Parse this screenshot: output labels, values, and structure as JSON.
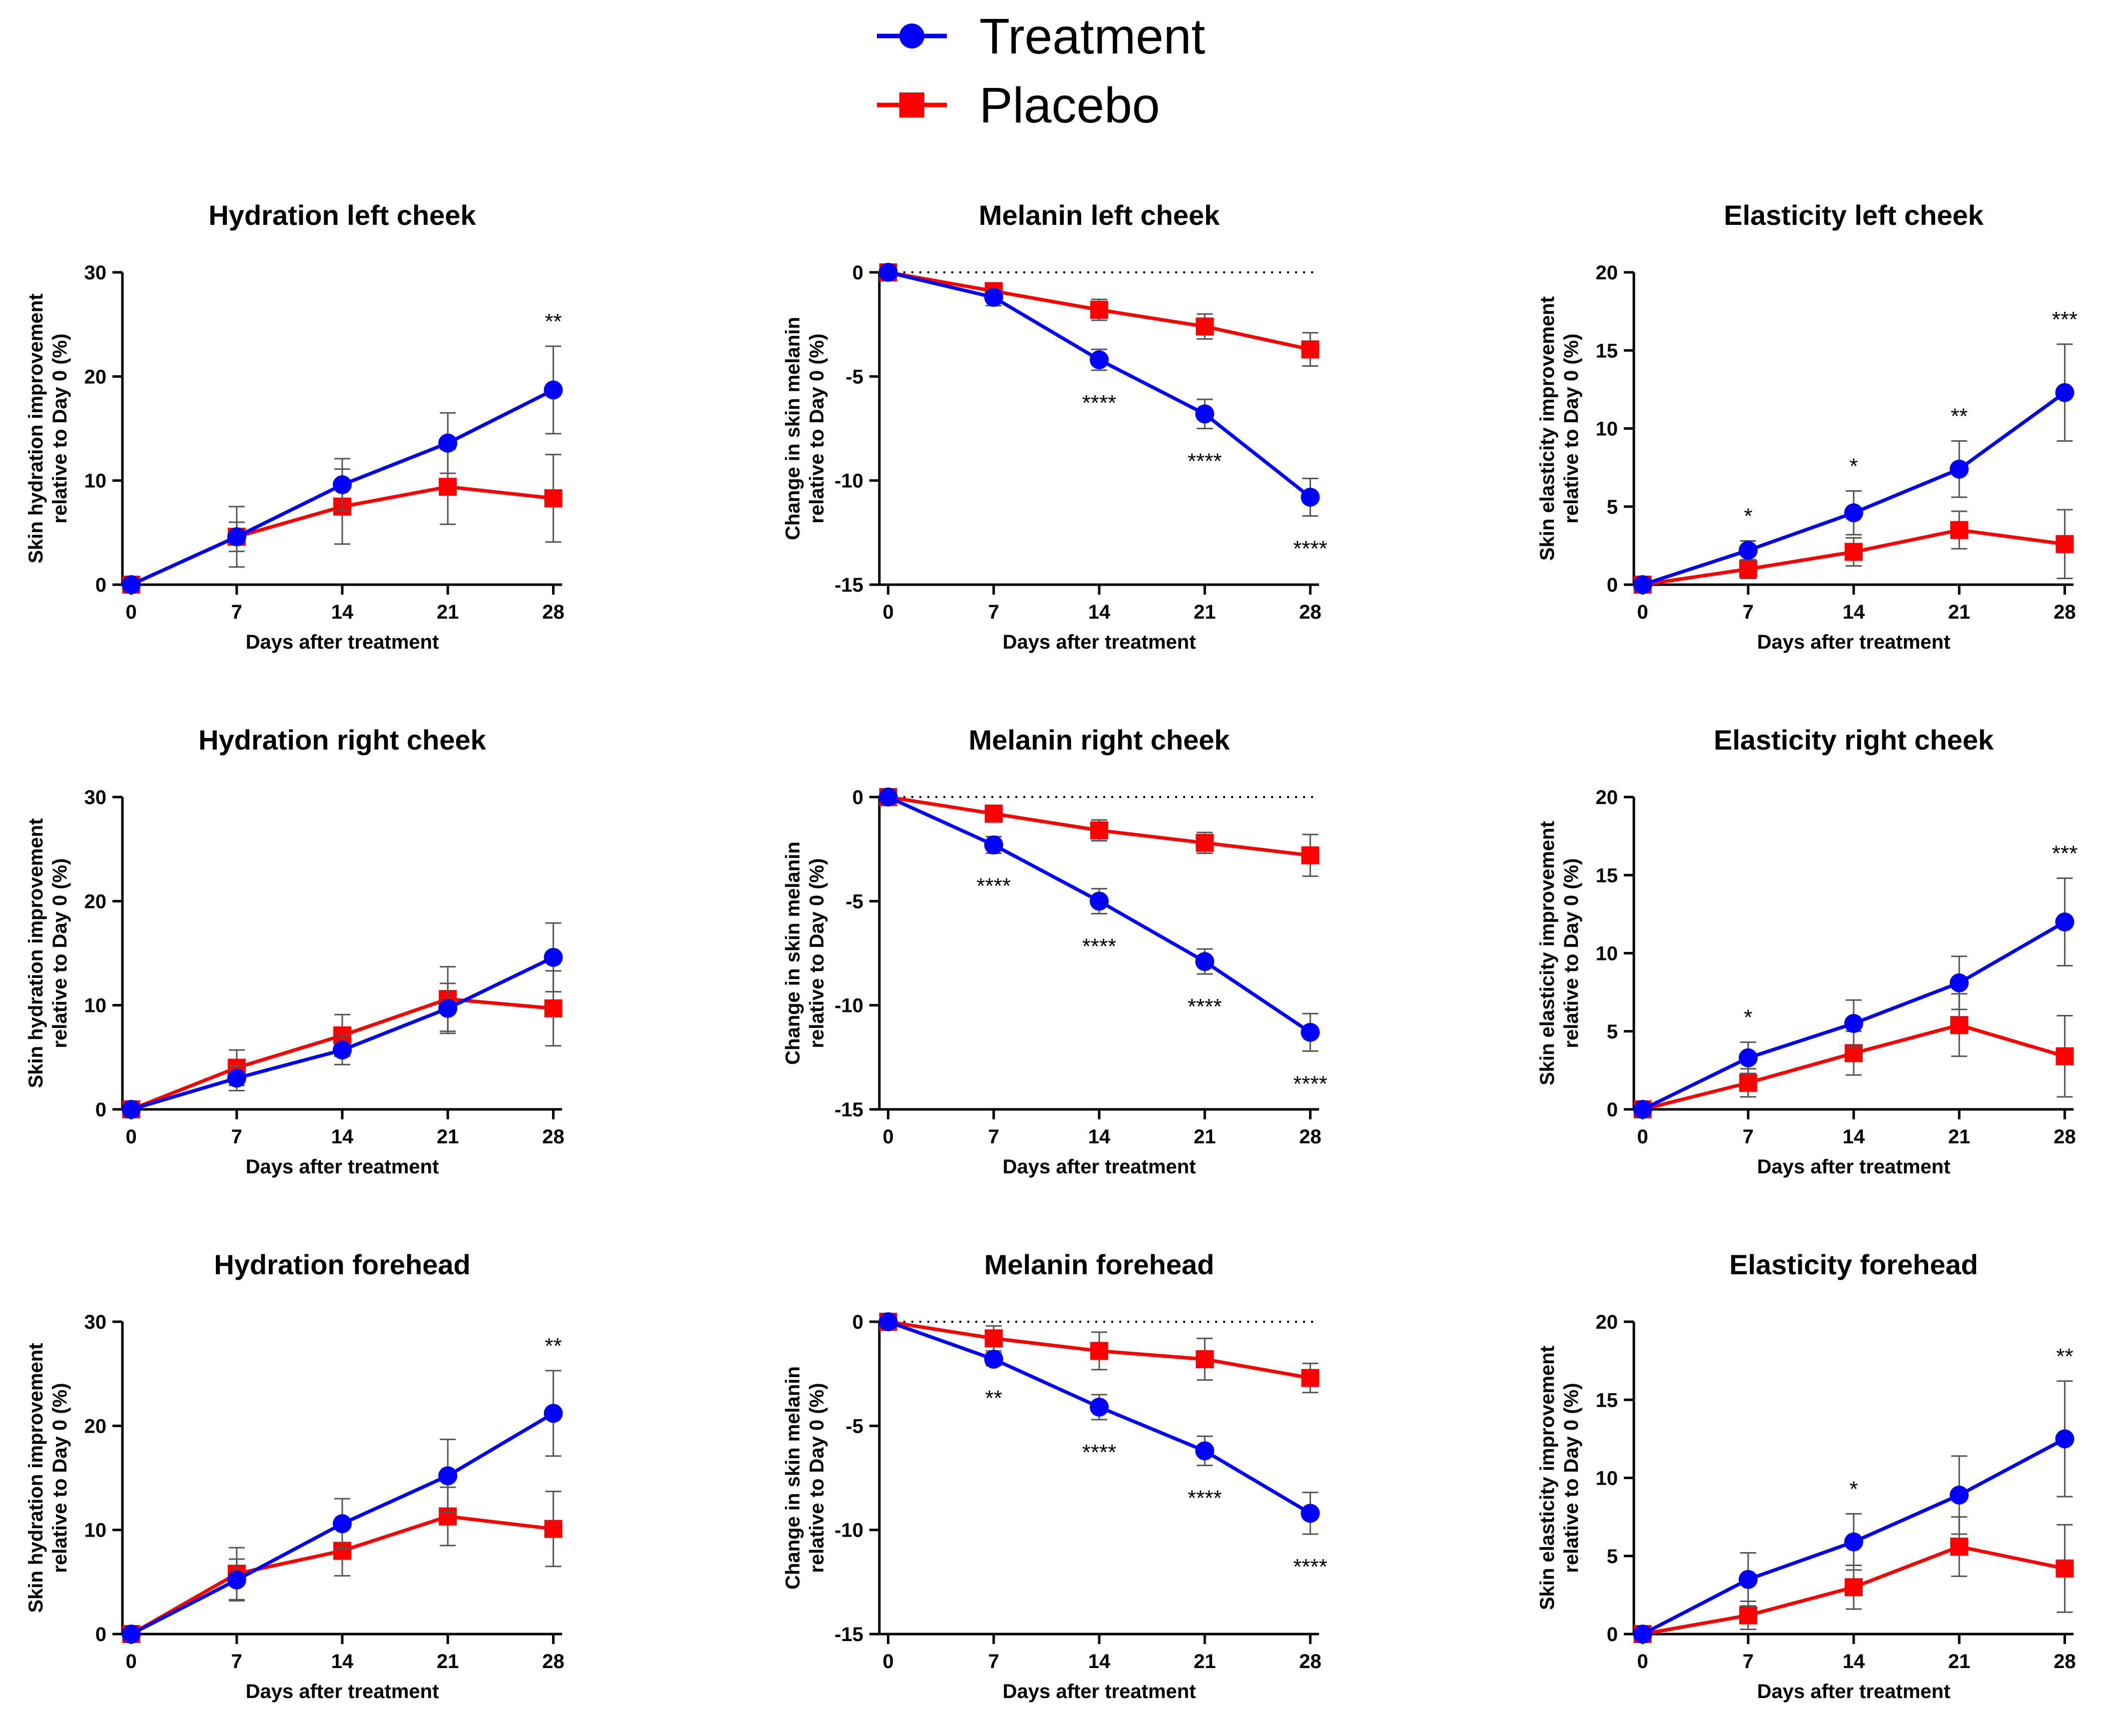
{
  "legend": {
    "items": [
      {
        "label": "Treatment",
        "color": "#0000FF",
        "marker": "circle"
      },
      {
        "label": "Placebo",
        "color": "#FF0000",
        "marker": "square"
      }
    ]
  },
  "chart_data": [
    {
      "type": "line",
      "title": "Hydration left cheek",
      "xlabel": "Days after treatment",
      "ylabel": [
        "Skin hydration improvement",
        "relative to Day 0 (%)"
      ],
      "x": [
        0,
        7,
        14,
        21,
        28
      ],
      "xticks": [
        "0",
        "7",
        "14",
        "21",
        "28"
      ],
      "ylim": [
        0,
        30
      ],
      "yticks": [
        "0",
        "10",
        "20",
        "30"
      ],
      "ytick_values": [
        0,
        10,
        20,
        30
      ],
      "zero_line": false,
      "series": [
        {
          "name": "Treatment",
          "values": [
            0,
            4.6,
            9.6,
            13.6,
            18.7
          ],
          "err": [
            0,
            1.4,
            2.5,
            2.9,
            4.2
          ]
        },
        {
          "name": "Placebo",
          "values": [
            0,
            4.6,
            7.5,
            9.4,
            8.3
          ],
          "err": [
            0,
            2.9,
            3.6,
            3.6,
            4.2
          ]
        }
      ],
      "significance": [
        {
          "x": 28,
          "label": "**",
          "position": "above"
        }
      ]
    },
    {
      "type": "line",
      "title": "Melanin left cheek",
      "xlabel": "Days after treatment",
      "ylabel": [
        "Change in skin melanin",
        "relative to Day 0 (%)"
      ],
      "x": [
        0,
        7,
        14,
        21,
        28
      ],
      "xticks": [
        "0",
        "7",
        "14",
        "21",
        "28"
      ],
      "ylim": [
        -15,
        0
      ],
      "yticks": [
        "0",
        "-5",
        "-10",
        "-15"
      ],
      "ytick_values": [
        0,
        -5,
        -10,
        -15
      ],
      "zero_line": true,
      "series": [
        {
          "name": "Treatment",
          "values": [
            0,
            -1.2,
            -4.2,
            -6.8,
            -10.8
          ],
          "err": [
            0,
            0.4,
            0.5,
            0.7,
            0.9
          ]
        },
        {
          "name": "Placebo",
          "values": [
            0,
            -0.9,
            -1.8,
            -2.6,
            -3.7
          ],
          "err": [
            0,
            0.3,
            0.5,
            0.6,
            0.8
          ]
        }
      ],
      "significance": [
        {
          "x": 14,
          "label": "****",
          "position": "below"
        },
        {
          "x": 21,
          "label": "****",
          "position": "below"
        },
        {
          "x": 28,
          "label": "****",
          "position": "below"
        }
      ]
    },
    {
      "type": "line",
      "title": "Elasticity left cheek",
      "xlabel": "Days after treatment",
      "ylabel": [
        "Skin elasticity improvement",
        "relative to  Day 0 (%)"
      ],
      "x": [
        0,
        7,
        14,
        21,
        28
      ],
      "xticks": [
        "0",
        "7",
        "14",
        "21",
        "28"
      ],
      "ylim": [
        0,
        20
      ],
      "yticks": [
        "0",
        "5",
        "10",
        "15",
        "20"
      ],
      "ytick_values": [
        0,
        5,
        10,
        15,
        20
      ],
      "zero_line": false,
      "series": [
        {
          "name": "Treatment",
          "values": [
            0,
            2.2,
            4.6,
            7.4,
            12.3
          ],
          "err": [
            0,
            0.6,
            1.4,
            1.8,
            3.1
          ]
        },
        {
          "name": "Placebo",
          "values": [
            0,
            1.0,
            2.1,
            3.5,
            2.6
          ],
          "err": [
            0,
            0.6,
            0.9,
            1.2,
            2.2
          ]
        }
      ],
      "significance": [
        {
          "x": 7,
          "label": "*",
          "position": "above"
        },
        {
          "x": 14,
          "label": "*",
          "position": "above"
        },
        {
          "x": 21,
          "label": "**",
          "position": "above"
        },
        {
          "x": 28,
          "label": "***",
          "position": "above"
        }
      ]
    },
    {
      "type": "line",
      "title": "Hydration right cheek",
      "xlabel": "Days after treatment",
      "ylabel": [
        "Skin hydration improvement",
        "relative to Day 0 (%)"
      ],
      "x": [
        0,
        7,
        14,
        21,
        28
      ],
      "xticks": [
        "0",
        "7",
        "14",
        "21",
        "28"
      ],
      "ylim": [
        0,
        30
      ],
      "yticks": [
        "0",
        "10",
        "20",
        "30"
      ],
      "ytick_values": [
        0,
        10,
        20,
        30
      ],
      "zero_line": false,
      "series": [
        {
          "name": "Treatment",
          "values": [
            0,
            3.0,
            5.7,
            9.7,
            14.6
          ],
          "err": [
            0,
            1.2,
            1.4,
            2.4,
            3.3
          ]
        },
        {
          "name": "Placebo",
          "values": [
            0,
            4.0,
            7.1,
            10.6,
            9.7
          ],
          "err": [
            0,
            1.7,
            2.0,
            3.1,
            3.6
          ]
        }
      ],
      "significance": []
    },
    {
      "type": "line",
      "title": "Melanin right cheek",
      "xlabel": "Days after treatment",
      "ylabel": [
        "Change in skin melanin",
        "relative to Day 0 (%)"
      ],
      "x": [
        0,
        7,
        14,
        21,
        28
      ],
      "xticks": [
        "0",
        "7",
        "14",
        "21",
        "28"
      ],
      "ylim": [
        -15,
        0
      ],
      "yticks": [
        "0",
        "-5",
        "-10",
        "-15"
      ],
      "ytick_values": [
        0,
        -5,
        -10,
        -15
      ],
      "zero_line": true,
      "series": [
        {
          "name": "Treatment",
          "values": [
            0,
            -2.3,
            -5.0,
            -7.9,
            -11.3
          ],
          "err": [
            0,
            0.4,
            0.6,
            0.6,
            0.9
          ]
        },
        {
          "name": "Placebo",
          "values": [
            0,
            -0.8,
            -1.6,
            -2.2,
            -2.8
          ],
          "err": [
            0,
            0.4,
            0.5,
            0.5,
            1.0
          ]
        }
      ],
      "significance": [
        {
          "x": 7,
          "label": "****",
          "position": "below"
        },
        {
          "x": 14,
          "label": "****",
          "position": "below"
        },
        {
          "x": 21,
          "label": "****",
          "position": "below"
        },
        {
          "x": 28,
          "label": "****",
          "position": "below"
        }
      ]
    },
    {
      "type": "line",
      "title": "Elasticity right cheek",
      "xlabel": "Days after treatment",
      "ylabel": [
        "Skin elasticity improvement",
        "relative to  Day 0 (%)"
      ],
      "x": [
        0,
        7,
        14,
        21,
        28
      ],
      "xticks": [
        "0",
        "7",
        "14",
        "21",
        "28"
      ],
      "ylim": [
        0,
        20
      ],
      "yticks": [
        "0",
        "5",
        "10",
        "15",
        "20"
      ],
      "ytick_values": [
        0,
        5,
        10,
        15,
        20
      ],
      "zero_line": false,
      "series": [
        {
          "name": "Treatment",
          "values": [
            0,
            3.3,
            5.5,
            8.1,
            12.0
          ],
          "err": [
            0,
            1.0,
            1.5,
            1.7,
            2.8
          ]
        },
        {
          "name": "Placebo",
          "values": [
            0,
            1.7,
            3.6,
            5.4,
            3.4
          ],
          "err": [
            0,
            0.9,
            1.4,
            2.0,
            2.6
          ]
        }
      ],
      "significance": [
        {
          "x": 7,
          "label": "*",
          "position": "above"
        },
        {
          "x": 28,
          "label": "***",
          "position": "above"
        }
      ]
    },
    {
      "type": "line",
      "title": "Hydration forehead",
      "xlabel": "Days after treatment",
      "ylabel": [
        "Skin hydration improvement",
        "relative to Day 0 (%)"
      ],
      "x": [
        0,
        7,
        14,
        21,
        28
      ],
      "xticks": [
        "0",
        "7",
        "14",
        "21",
        "28"
      ],
      "ylim": [
        0,
        30
      ],
      "yticks": [
        "0",
        "10",
        "20",
        "30"
      ],
      "ytick_values": [
        0,
        10,
        20,
        30
      ],
      "zero_line": false,
      "series": [
        {
          "name": "Treatment",
          "values": [
            0,
            5.2,
            10.6,
            15.2,
            21.2
          ],
          "err": [
            0,
            2.0,
            2.4,
            3.5,
            4.1
          ]
        },
        {
          "name": "Placebo",
          "values": [
            0,
            5.8,
            8.0,
            11.3,
            10.1
          ],
          "err": [
            0,
            2.5,
            2.4,
            2.8,
            3.6
          ]
        }
      ],
      "significance": [
        {
          "x": 28,
          "label": "**",
          "position": "above"
        }
      ]
    },
    {
      "type": "line",
      "title": "Melanin forehead",
      "xlabel": "Days after treatment",
      "ylabel": [
        "Change in skin melanin",
        "relative to Day 0 (%)"
      ],
      "x": [
        0,
        7,
        14,
        21,
        28
      ],
      "xticks": [
        "0",
        "7",
        "14",
        "21",
        "28"
      ],
      "ylim": [
        -15,
        0
      ],
      "yticks": [
        "0",
        "-5",
        "-10",
        "-15"
      ],
      "ytick_values": [
        0,
        -5,
        -10,
        -15
      ],
      "zero_line": true,
      "series": [
        {
          "name": "Treatment",
          "values": [
            0,
            -1.8,
            -4.1,
            -6.2,
            -9.2
          ],
          "err": [
            0,
            0.3,
            0.6,
            0.7,
            1.0
          ]
        },
        {
          "name": "Placebo",
          "values": [
            0,
            -0.8,
            -1.4,
            -1.8,
            -2.7
          ],
          "err": [
            0,
            0.6,
            0.9,
            1.0,
            0.7
          ]
        }
      ],
      "significance": [
        {
          "x": 7,
          "label": "**",
          "position": "below"
        },
        {
          "x": 14,
          "label": "****",
          "position": "below"
        },
        {
          "x": 21,
          "label": "****",
          "position": "below"
        },
        {
          "x": 28,
          "label": "****",
          "position": "below"
        }
      ]
    },
    {
      "type": "line",
      "title": "Elasticity forehead",
      "xlabel": "Days after treatment",
      "ylabel": [
        "Skin elasticity improvement",
        "relative to  Day 0 (%)"
      ],
      "x": [
        0,
        7,
        14,
        21,
        28
      ],
      "xticks": [
        "0",
        "7",
        "14",
        "21",
        "28"
      ],
      "ylim": [
        0,
        20
      ],
      "yticks": [
        "0",
        "5",
        "10",
        "15",
        "20"
      ],
      "ytick_values": [
        0,
        5,
        10,
        15,
        20
      ],
      "zero_line": false,
      "series": [
        {
          "name": "Treatment",
          "values": [
            0,
            3.5,
            5.9,
            8.9,
            12.5
          ],
          "err": [
            0,
            1.7,
            1.8,
            2.5,
            3.7
          ]
        },
        {
          "name": "Placebo",
          "values": [
            0,
            1.2,
            3.0,
            5.6,
            4.2
          ],
          "err": [
            0,
            0.9,
            1.4,
            1.9,
            2.8
          ]
        }
      ],
      "significance": [
        {
          "x": 14,
          "label": "*",
          "position": "above"
        },
        {
          "x": 28,
          "label": "**",
          "position": "above"
        }
      ]
    }
  ]
}
